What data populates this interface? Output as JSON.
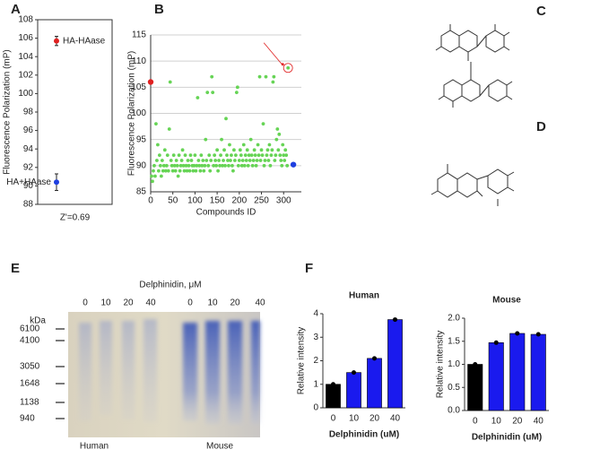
{
  "chart_data": [
    {
      "type": "errorbar",
      "ylabel": "Fluorescence Polarization (mP)",
      "ylim": [
        88,
        108
      ],
      "yticks": [
        88,
        90,
        92,
        94,
        96,
        98,
        100,
        102,
        104,
        106,
        108
      ],
      "series": [
        {
          "name": "HA-HAase",
          "color": "#e02020",
          "values": [
            105.7
          ],
          "errors": [
            0.5
          ]
        },
        {
          "name": "HA+HAase",
          "color": "#1f3fe0",
          "values": [
            90.4
          ],
          "errors": [
            0.9
          ]
        }
      ],
      "annotation": "Z'=0.69"
    },
    {
      "type": "scatter",
      "xlabel": "Compounds ID",
      "ylabel": "Fluorescence Polarization (mP)",
      "xlim": [
        0,
        340
      ],
      "xticks": [
        0,
        50,
        100,
        150,
        200,
        250,
        300
      ],
      "ylim": [
        85,
        115
      ],
      "yticks": [
        85,
        90,
        95,
        100,
        105,
        110,
        115
      ],
      "grid": true,
      "series": [
        {
          "color": "#66d455",
          "x": [
            2,
            4,
            6,
            8,
            10,
            12,
            14,
            16,
            18,
            20,
            22,
            24,
            26,
            28,
            30,
            32,
            34,
            36,
            38,
            40,
            42,
            44,
            46,
            48,
            50,
            52,
            54,
            56,
            58,
            60,
            62,
            64,
            66,
            68,
            70,
            72,
            74,
            76,
            78,
            80,
            82,
            84,
            86,
            88,
            90,
            92,
            94,
            96,
            98,
            100,
            102,
            104,
            106,
            108,
            110,
            112,
            114,
            116,
            118,
            120,
            122,
            124,
            126,
            128,
            130,
            132,
            134,
            136,
            138,
            140,
            142,
            144,
            146,
            148,
            150,
            152,
            154,
            156,
            158,
            160,
            162,
            164,
            166,
            168,
            170,
            172,
            174,
            176,
            178,
            180,
            182,
            184,
            186,
            188,
            190,
            192,
            194,
            196,
            198,
            200,
            202,
            204,
            206,
            208,
            210,
            212,
            214,
            216,
            218,
            220,
            222,
            224,
            226,
            228,
            230,
            232,
            234,
            236,
            238,
            240,
            242,
            244,
            246,
            248,
            250,
            252,
            254,
            256,
            258,
            260,
            262,
            264,
            266,
            268,
            270,
            272,
            274,
            276,
            278,
            280,
            282,
            284,
            286,
            288,
            290,
            292,
            294,
            296,
            298,
            300,
            302,
            304,
            306,
            308,
            310
          ],
          "values": [
            88,
            87,
            89,
            90,
            88,
            98,
            91,
            94,
            89,
            92,
            90,
            88,
            91,
            89,
            90,
            93,
            89,
            90,
            92,
            89,
            97,
            106,
            91,
            90,
            89,
            92,
            90,
            89,
            91,
            90,
            88,
            92,
            89,
            90,
            91,
            93,
            90,
            89,
            92,
            90,
            89,
            91,
            90,
            89,
            92,
            91,
            90,
            89,
            90,
            92,
            89,
            90,
            103,
            91,
            90,
            89,
            92,
            90,
            91,
            89,
            90,
            95,
            91,
            104,
            90,
            92,
            89,
            91,
            107,
            104,
            90,
            92,
            91,
            90,
            93,
            89,
            91,
            90,
            92,
            95,
            90,
            91,
            93,
            90,
            99,
            92,
            91,
            90,
            94,
            91,
            92,
            90,
            89,
            93,
            91,
            92,
            104,
            105,
            90,
            91,
            93,
            92,
            90,
            91,
            94,
            90,
            92,
            91,
            93,
            90,
            92,
            91,
            95,
            92,
            90,
            91,
            93,
            92,
            90,
            91,
            94,
            92,
            107,
            91,
            93,
            92,
            98,
            90,
            91,
            107,
            92,
            93,
            91,
            94,
            90,
            92,
            93,
            106,
            107,
            91,
            92,
            95,
            97,
            93,
            96,
            92,
            91,
            90,
            94,
            92,
            91,
            93,
            92,
            90,
            108.7
          ]
        },
        {
          "color": "#e02020",
          "x": [
            0
          ],
          "values": [
            106
          ]
        },
        {
          "color": "#1f3fe0",
          "x": [
            322
          ],
          "values": [
            90.2
          ]
        }
      ]
    },
    {
      "type": "bar",
      "title": "Human",
      "xlabel": "Delphinidin (uM)",
      "ylabel": "Relative intensity",
      "categories": [
        "0",
        "10",
        "20",
        "40"
      ],
      "values": [
        1.0,
        1.5,
        2.1,
        3.75
      ],
      "colors": [
        "#000000",
        "#1a1aee",
        "#1a1aee",
        "#1a1aee"
      ],
      "ylim": [
        0,
        4
      ],
      "yticks": [
        0,
        1,
        2,
        3,
        4
      ]
    },
    {
      "type": "bar",
      "title": "Mouse",
      "xlabel": "Delphinidin (uM)",
      "ylabel": "Relative intensity",
      "categories": [
        "0",
        "10",
        "20",
        "40"
      ],
      "values": [
        1.0,
        1.47,
        1.67,
        1.65
      ],
      "colors": [
        "#000000",
        "#1a1aee",
        "#1a1aee",
        "#1a1aee"
      ],
      "ylim": [
        0,
        2
      ],
      "yticks": [
        {
          "value": 0,
          "label": "0.0"
        },
        0.5,
        {
          "value": 1,
          "label": "1.0"
        },
        1.5,
        {
          "value": 2,
          "label": "2.0"
        }
      ]
    }
  ],
  "panel_labels": [
    "A",
    "B",
    "C",
    "D",
    "E",
    "F"
  ],
  "gel": {
    "title": "Delphinidin, μM",
    "lanes": [
      "0",
      "10",
      "20",
      "40",
      "0",
      "10",
      "20",
      "40"
    ],
    "unit": "kDa",
    "markers": [
      "6100",
      "4100",
      "3050",
      "1648",
      "1138",
      "940"
    ],
    "groups": [
      "Human",
      "Mouse"
    ]
  }
}
